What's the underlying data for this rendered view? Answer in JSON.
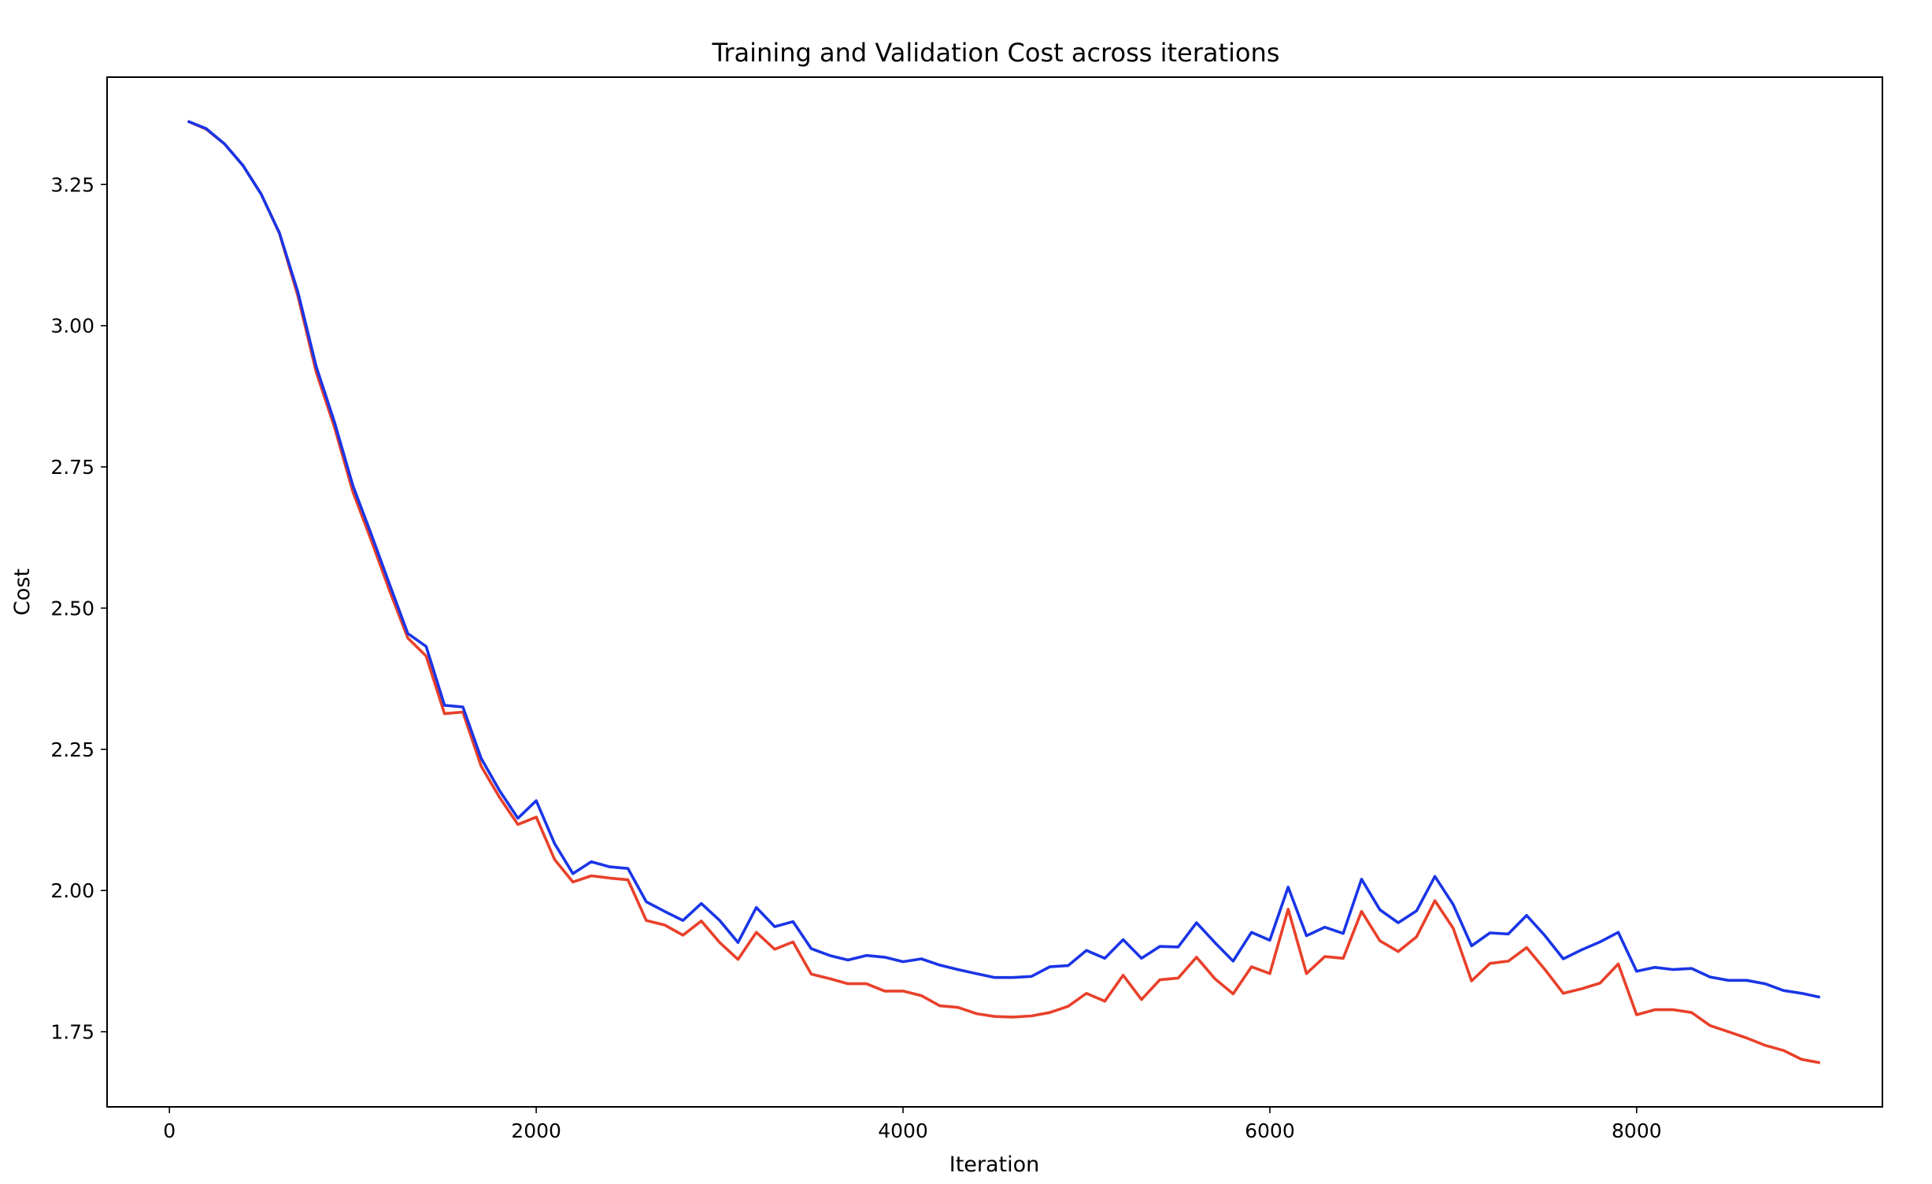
{
  "chart_data": {
    "type": "line",
    "title": "Training and Validation Cost across iterations",
    "xlabel": "Iteration",
    "ylabel": "Cost",
    "xlim": [
      -340,
      9340
    ],
    "ylim": [
      1.617,
      3.44
    ],
    "xticks": [
      0,
      2000,
      4000,
      6000,
      8000
    ],
    "yticks": [
      1.75,
      2.0,
      2.25,
      2.5,
      2.75,
      3.0,
      3.25
    ],
    "xtick_labels": [
      "0",
      "2000",
      "4000",
      "6000",
      "8000"
    ],
    "ytick_labels": [
      "1.75",
      "2.00",
      "2.25",
      "2.50",
      "2.75",
      "3.00",
      "3.25"
    ],
    "grid": false,
    "x": [
      100,
      200,
      300,
      400,
      500,
      600,
      700,
      800,
      900,
      1000,
      1100,
      1200,
      1300,
      1400,
      1500,
      1600,
      1700,
      1800,
      1900,
      2000,
      2100,
      2200,
      2300,
      2400,
      2500,
      2600,
      2700,
      2800,
      2900,
      3000,
      3100,
      3200,
      3300,
      3400,
      3500,
      3600,
      3700,
      3800,
      3900,
      4000,
      4100,
      4200,
      4300,
      4400,
      4500,
      4600,
      4700,
      4800,
      4900,
      5000,
      5100,
      5200,
      5300,
      5400,
      5500,
      5600,
      5700,
      5800,
      5900,
      6000,
      6100,
      6200,
      6300,
      6400,
      6500,
      6600,
      6700,
      6800,
      6900,
      7000,
      7100,
      7200,
      7300,
      7400,
      7500,
      7600,
      7700,
      7800,
      7900,
      8000,
      8100,
      8200,
      8300,
      8400,
      8500,
      8600,
      8700,
      8800,
      8900,
      9000
    ],
    "series": [
      {
        "color": "#e8402a",
        "values": [
          3.362,
          3.348,
          3.322,
          3.284,
          3.233,
          3.163,
          3.053,
          2.918,
          2.82,
          2.706,
          2.62,
          2.531,
          2.447,
          2.415,
          2.313,
          2.316,
          2.22,
          2.165,
          2.117,
          2.13,
          2.055,
          2.015,
          2.026,
          2.022,
          2.019,
          1.947,
          1.939,
          1.921,
          1.946,
          1.908,
          1.878,
          1.926,
          1.896,
          1.909,
          1.852,
          1.844,
          1.835,
          1.835,
          1.822,
          1.822,
          1.814,
          1.796,
          1.793,
          1.782,
          1.777,
          1.776,
          1.778,
          1.784,
          1.795,
          1.818,
          1.804,
          1.85,
          1.807,
          1.842,
          1.845,
          1.882,
          1.844,
          1.817,
          1.865,
          1.853,
          1.967,
          1.853,
          1.883,
          1.88,
          1.963,
          1.911,
          1.892,
          1.918,
          1.982,
          1.933,
          1.84,
          1.871,
          1.875,
          1.899,
          1.86,
          1.818,
          1.826,
          1.836,
          1.87,
          1.78,
          1.789,
          1.789,
          1.784,
          1.761,
          1.75,
          1.739,
          1.726,
          1.717,
          1.701,
          1.695
        ]
      },
      {
        "color": "#1a35e6",
        "values": [
          3.362,
          3.349,
          3.322,
          3.284,
          3.233,
          3.164,
          3.06,
          2.928,
          2.829,
          2.717,
          2.631,
          2.542,
          2.455,
          2.432,
          2.328,
          2.325,
          2.234,
          2.177,
          2.128,
          2.159,
          2.083,
          2.03,
          2.051,
          2.042,
          2.039,
          1.98,
          1.963,
          1.947,
          1.977,
          1.947,
          1.908,
          1.97,
          1.936,
          1.945,
          1.897,
          1.885,
          1.877,
          1.885,
          1.882,
          1.874,
          1.879,
          1.868,
          1.86,
          1.853,
          1.846,
          1.846,
          1.848,
          1.865,
          1.867,
          1.894,
          1.88,
          1.913,
          1.88,
          1.901,
          1.9,
          1.943,
          1.908,
          1.875,
          1.926,
          1.912,
          2.006,
          1.92,
          1.935,
          1.924,
          2.02,
          1.966,
          1.943,
          1.964,
          2.025,
          1.975,
          1.902,
          1.925,
          1.923,
          1.956,
          1.92,
          1.879,
          1.895,
          1.909,
          1.926,
          1.857,
          1.864,
          1.86,
          1.862,
          1.847,
          1.841,
          1.841,
          1.835,
          1.823,
          1.818,
          1.811
        ]
      }
    ]
  }
}
